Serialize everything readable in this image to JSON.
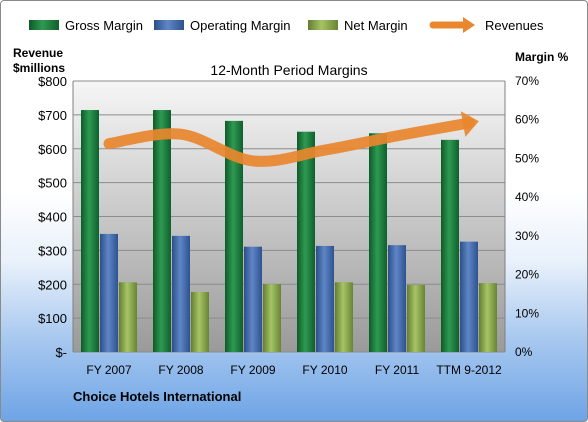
{
  "company": "Choice Hotels International",
  "chart_data": {
    "type": "bar",
    "title": "12-Month Period Margins",
    "ylabel_left": [
      "Revenue",
      "$millions"
    ],
    "ylabel_right": "Margin %",
    "categories": [
      "FY 2007",
      "FY 2008",
      "FY 2009",
      "FY 2010",
      "FY 2011",
      "TTM 9-2012"
    ],
    "left_axis": {
      "min": 0,
      "max": 800,
      "step": 100,
      "tick_labels": [
        "$-",
        "$100",
        "$200",
        "$300",
        "$400",
        "$500",
        "$600",
        "$700",
        "$800"
      ]
    },
    "right_axis": {
      "min": 0,
      "max": 70,
      "step": 10,
      "unit": "%"
    },
    "grid": true,
    "legend_position": "top",
    "series": [
      {
        "name": "Gross Margin",
        "axis": "right",
        "color": "#1e7a3c",
        "values": [
          62.5,
          62.5,
          59.7,
          56.9,
          56.5,
          54.8
        ]
      },
      {
        "name": "Operating Margin",
        "axis": "right",
        "color": "#4068a8",
        "values": [
          30.5,
          30.0,
          27.2,
          27.4,
          27.6,
          28.5
        ]
      },
      {
        "name": "Net Margin",
        "axis": "right",
        "color": "#87a84a",
        "values": [
          18.0,
          15.5,
          17.5,
          18.0,
          17.3,
          17.8
        ]
      },
      {
        "name": "Revenues",
        "axis": "left",
        "type": "line",
        "color": "#e8872e",
        "values": [
          615,
          643,
          564,
          596,
          638,
          676
        ]
      }
    ]
  }
}
